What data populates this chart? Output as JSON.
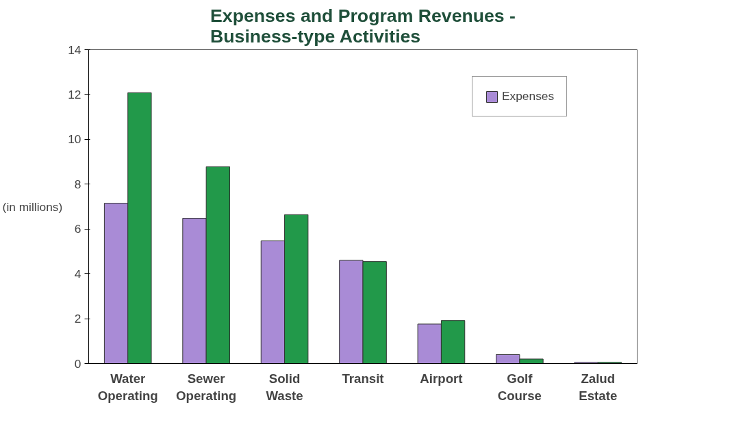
{
  "chart_data": {
    "type": "bar",
    "title": "Expenses and Program Revenues -\nBusiness-type Activities",
    "ylabel": "(in millions)",
    "categories": [
      "Water Operating",
      "Sewer Operating",
      "Solid Waste",
      "Transit",
      "Airport",
      "Golf Course",
      "Zalud Estate"
    ],
    "series": [
      {
        "name": "Expenses",
        "color": "#a98bd6",
        "values": [
          7.15,
          6.48,
          5.47,
          4.6,
          1.76,
          0.4,
          0.05
        ]
      },
      {
        "color": "#22994a",
        "values": [
          12.08,
          8.78,
          6.64,
          4.55,
          1.92,
          0.2,
          0.05
        ]
      }
    ],
    "ylim": [
      0,
      14
    ],
    "yticks": [
      0,
      2,
      4,
      6,
      8,
      10,
      12,
      14
    ],
    "grid": false,
    "legend": "top right"
  }
}
